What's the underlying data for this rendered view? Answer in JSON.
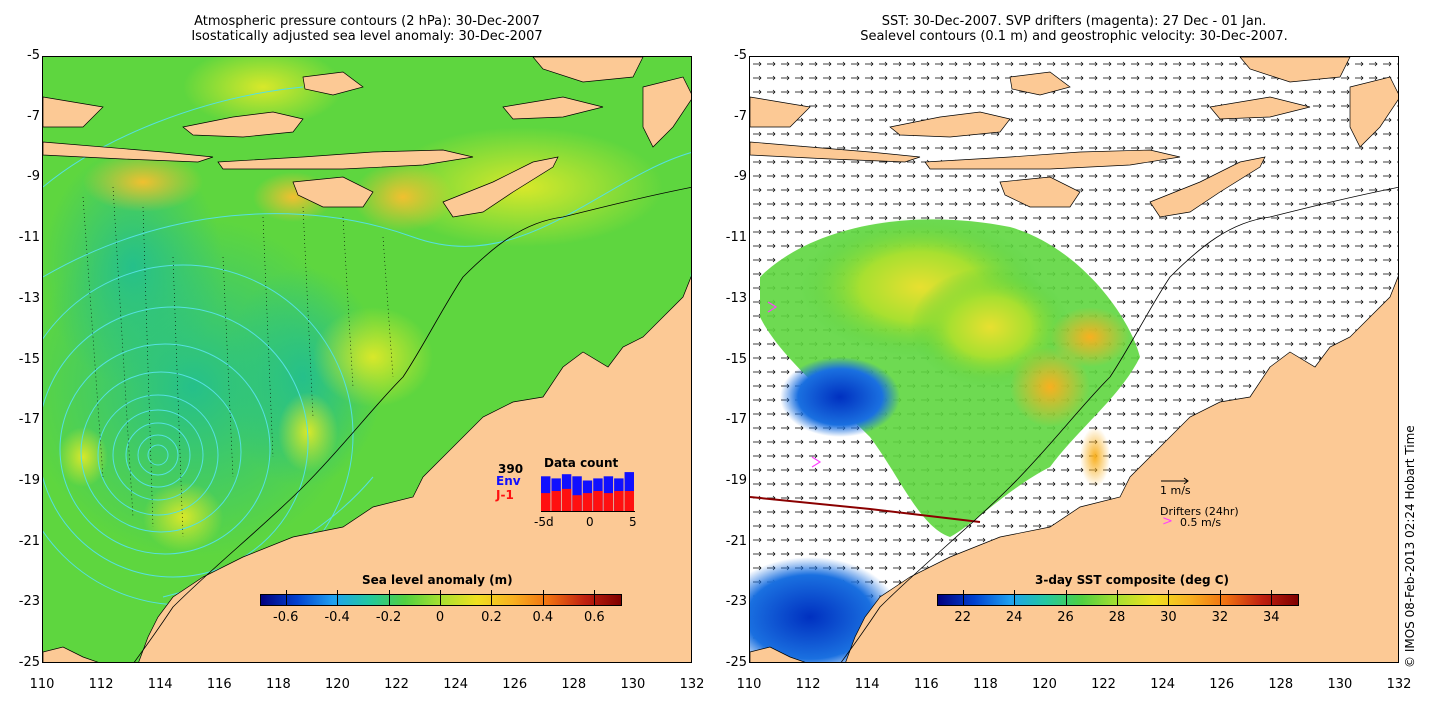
{
  "left_panel": {
    "title_line1": "Atmospheric pressure contours (2 hPa): 30-Dec-2007",
    "title_line2": "Isostatically adjusted sea level anomaly: 30-Dec-2007",
    "colorbar_title": "Sea level anomaly (m)",
    "colorbar_ticks": [
      "-0.6",
      "-0.4",
      "-0.2",
      "0",
      "0.2",
      "0.4",
      "0.6"
    ],
    "data_count": {
      "label": "Data count",
      "total": "390",
      "series1": "Env",
      "series2": "J-1",
      "axis_ticks": [
        "-5d",
        "0",
        "5"
      ],
      "series1_values": [
        0.85,
        0.8,
        0.9,
        0.85,
        0.75,
        0.8,
        0.85,
        0.8,
        0.95
      ],
      "series2_values": [
        0.45,
        0.5,
        0.55,
        0.4,
        0.45,
        0.5,
        0.45,
        0.5,
        0.5
      ]
    },
    "colors": {
      "series1": "#1010ff",
      "series2": "#ff1010"
    }
  },
  "right_panel": {
    "title_line1": "SST: 30-Dec-2007. SVP drifters (magenta): 27 Dec - 01 Jan.",
    "title_line2": "Sealevel contours (0.1 m) and geostrophic velocity: 30-Dec-2007.",
    "colorbar_title": "3-day SST composite (deg C)",
    "colorbar_ticks": [
      "22",
      "24",
      "26",
      "28",
      "30",
      "32",
      "34"
    ],
    "velocity_label": "1 m/s",
    "drifters_label": "Drifters (24hr)",
    "drifters_speed": "0.5 m/s",
    "drifter_marker": ">"
  },
  "axes": {
    "x_ticks": [
      "110",
      "112",
      "114",
      "116",
      "118",
      "120",
      "122",
      "124",
      "126",
      "128",
      "130",
      "132"
    ],
    "y_ticks": [
      "-5",
      "-7",
      "-9",
      "-11",
      "-13",
      "-15",
      "-17",
      "-19",
      "-21",
      "-23",
      "-25"
    ]
  },
  "copyright": "© IMOS 08-Feb-2013 02:24 Hobart Time",
  "colors": {
    "land": "#fcc995",
    "ocean": "#5ed63f",
    "contour": "#55e0e0"
  }
}
